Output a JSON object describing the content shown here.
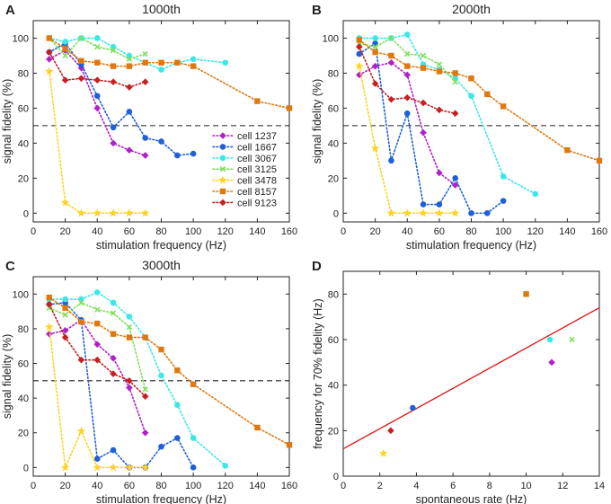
{
  "colors": {
    "cell 1237": "#b020c8",
    "cell 1667": "#1f60d8",
    "cell 3067": "#3ae8e8",
    "cell 3125": "#7ee05a",
    "cell 3478": "#ffd21e",
    "cell 8157": "#e07810",
    "cell 9123": "#c82020",
    "fit_line": "#e01010"
  },
  "markers": {
    "cell 1237": "diamond",
    "cell 1667": "circle",
    "cell 3067": "circle",
    "cell 3125": "x",
    "cell 3478": "star",
    "cell 8157": "square",
    "cell 9123": "diamond"
  },
  "chart_data": [
    {
      "id": "A",
      "letter": "A",
      "type": "line",
      "title": "1000th",
      "xlabel": "stimulation frequency (Hz)",
      "ylabel": "signal fidelity (%)",
      "xlim": [
        0,
        160
      ],
      "ylim": [
        -5,
        110
      ],
      "xticks": [
        0,
        20,
        40,
        60,
        80,
        100,
        120,
        140,
        160
      ],
      "yticks": [
        0,
        20,
        40,
        60,
        80,
        100
      ],
      "hline": 50,
      "legend": "center-right",
      "series": [
        {
          "name": "cell 1237",
          "x": [
            10,
            20,
            30,
            40,
            50,
            60,
            70
          ],
          "y": [
            88,
            93,
            83,
            60,
            40,
            36,
            33
          ]
        },
        {
          "name": "cell 1667",
          "x": [
            10,
            20,
            30,
            40,
            50,
            60,
            70,
            80,
            90,
            100
          ],
          "y": [
            92,
            97,
            85,
            67,
            49,
            58,
            43,
            41,
            33,
            34
          ]
        },
        {
          "name": "cell 3067",
          "x": [
            10,
            20,
            30,
            40,
            50,
            60,
            70,
            80,
            90,
            100,
            120
          ],
          "y": [
            100,
            98,
            100,
            100,
            95,
            90,
            86,
            82,
            86,
            88,
            86
          ]
        },
        {
          "name": "cell 3125",
          "x": [
            10,
            20,
            30,
            40,
            50,
            60,
            70
          ],
          "y": [
            100,
            90,
            100,
            95,
            93,
            88,
            91
          ]
        },
        {
          "name": "cell 3478",
          "x": [
            10,
            20,
            30,
            40,
            50,
            60,
            70
          ],
          "y": [
            81,
            6,
            0,
            0,
            0,
            0,
            0
          ]
        },
        {
          "name": "cell 8157",
          "x": [
            10,
            20,
            30,
            40,
            50,
            60,
            70,
            80,
            90,
            100,
            140,
            160
          ],
          "y": [
            100,
            94,
            87,
            86,
            84,
            84,
            86,
            86,
            86,
            84,
            64,
            60
          ]
        },
        {
          "name": "cell 9123",
          "x": [
            10,
            20,
            30,
            40,
            50,
            60,
            70
          ],
          "y": [
            92,
            76,
            77,
            76,
            75,
            72,
            75
          ]
        }
      ]
    },
    {
      "id": "B",
      "letter": "B",
      "type": "line",
      "title": "2000th",
      "xlabel": "stimulation frequency (Hz)",
      "ylabel": "signal fidelity (%)",
      "xlim": [
        0,
        160
      ],
      "ylim": [
        -5,
        110
      ],
      "xticks": [
        0,
        20,
        40,
        60,
        80,
        100,
        120,
        140,
        160
      ],
      "yticks": [
        0,
        20,
        40,
        60,
        80,
        100
      ],
      "hline": 50,
      "series": [
        {
          "name": "cell 1237",
          "x": [
            10,
            20,
            30,
            40,
            50,
            60,
            70
          ],
          "y": [
            79,
            84,
            86,
            79,
            46,
            23,
            16
          ]
        },
        {
          "name": "cell 1667",
          "x": [
            10,
            20,
            30,
            40,
            50,
            60,
            70,
            80,
            90,
            100
          ],
          "y": [
            91,
            97,
            30,
            57,
            5,
            5,
            20,
            0,
            0,
            7
          ]
        },
        {
          "name": "cell 3067",
          "x": [
            10,
            20,
            30,
            40,
            50,
            60,
            70,
            80,
            100,
            120
          ],
          "y": [
            100,
            100,
            100,
            102,
            85,
            82,
            77,
            67,
            21,
            11
          ]
        },
        {
          "name": "cell 3125",
          "x": [
            10,
            20,
            30,
            40,
            50,
            60,
            70
          ],
          "y": [
            97,
            95,
            100,
            91,
            90,
            85,
            75
          ]
        },
        {
          "name": "cell 3478",
          "x": [
            10,
            20,
            30,
            40,
            50,
            60,
            70
          ],
          "y": [
            84,
            37,
            0,
            0,
            0,
            0,
            0
          ]
        },
        {
          "name": "cell 8157",
          "x": [
            10,
            20,
            30,
            40,
            50,
            60,
            70,
            80,
            90,
            100,
            140,
            160
          ],
          "y": [
            99,
            92,
            90,
            84,
            83,
            81,
            80,
            77,
            68,
            61,
            36,
            30
          ]
        },
        {
          "name": "cell 9123",
          "x": [
            10,
            20,
            30,
            40,
            50,
            60,
            70
          ],
          "y": [
            95,
            74,
            65,
            66,
            63,
            59,
            57
          ]
        }
      ]
    },
    {
      "id": "C",
      "letter": "C",
      "type": "line",
      "title": "3000th",
      "xlabel": "stimulation frequency (Hz)",
      "ylabel": "signal fidelity (%)",
      "xlim": [
        0,
        160
      ],
      "ylim": [
        -5,
        110
      ],
      "xticks": [
        0,
        20,
        40,
        60,
        80,
        100,
        120,
        140,
        160
      ],
      "yticks": [
        0,
        20,
        40,
        60,
        80,
        100
      ],
      "hline": 50,
      "series": [
        {
          "name": "cell 1237",
          "x": [
            10,
            20,
            30,
            40,
            50,
            60,
            70
          ],
          "y": [
            77,
            79,
            85,
            71,
            63,
            46,
            20
          ]
        },
        {
          "name": "cell 1667",
          "x": [
            10,
            20,
            30,
            40,
            50,
            60,
            70,
            80,
            90,
            100
          ],
          "y": [
            94,
            95,
            85,
            5,
            10,
            0,
            0,
            12,
            17,
            0
          ]
        },
        {
          "name": "cell 3067",
          "x": [
            10,
            20,
            30,
            40,
            50,
            60,
            70,
            80,
            90,
            100,
            120
          ],
          "y": [
            97,
            97,
            97,
            101,
            95,
            87,
            75,
            53,
            36,
            17,
            1
          ]
        },
        {
          "name": "cell 3125",
          "x": [
            10,
            20,
            30,
            40,
            50,
            60,
            70
          ],
          "y": [
            92,
            88,
            95,
            91,
            89,
            81,
            45
          ]
        },
        {
          "name": "cell 3478",
          "x": [
            10,
            20,
            30,
            40,
            50,
            60,
            70
          ],
          "y": [
            81,
            0,
            21,
            0,
            0,
            0,
            0
          ]
        },
        {
          "name": "cell 8157",
          "x": [
            10,
            20,
            30,
            40,
            50,
            60,
            70,
            80,
            90,
            100,
            140,
            160
          ],
          "y": [
            98,
            92,
            84,
            83,
            77,
            75,
            75,
            68,
            56,
            48,
            23,
            13
          ]
        },
        {
          "name": "cell 9123",
          "x": [
            10,
            20,
            30,
            40,
            50,
            60,
            70
          ],
          "y": [
            94,
            75,
            62,
            62,
            54,
            50,
            41
          ]
        }
      ]
    },
    {
      "id": "D",
      "letter": "D",
      "type": "scatter",
      "title": "",
      "xlabel": "spontaneous rate (Hz)",
      "ylabel": "frequency for 70% fidelity (Hz)",
      "xlim": [
        0,
        14
      ],
      "ylim": [
        0,
        90
      ],
      "xticks": [
        0,
        2,
        4,
        6,
        8,
        10,
        12,
        14
      ],
      "yticks": [
        0,
        20,
        40,
        60,
        80
      ],
      "points": [
        {
          "name": "cell 3478",
          "x": 2.2,
          "y": 10
        },
        {
          "name": "cell 9123",
          "x": 2.6,
          "y": 20
        },
        {
          "name": "cell 1667",
          "x": 3.8,
          "y": 30
        },
        {
          "name": "cell 8157",
          "x": 10.0,
          "y": 80
        },
        {
          "name": "cell 3067",
          "x": 11.3,
          "y": 60
        },
        {
          "name": "cell 1237",
          "x": 11.4,
          "y": 50
        },
        {
          "name": "cell 3125",
          "x": 12.5,
          "y": 60
        }
      ],
      "fit_line": {
        "x": [
          0,
          14
        ],
        "y": [
          12,
          74
        ]
      }
    }
  ]
}
